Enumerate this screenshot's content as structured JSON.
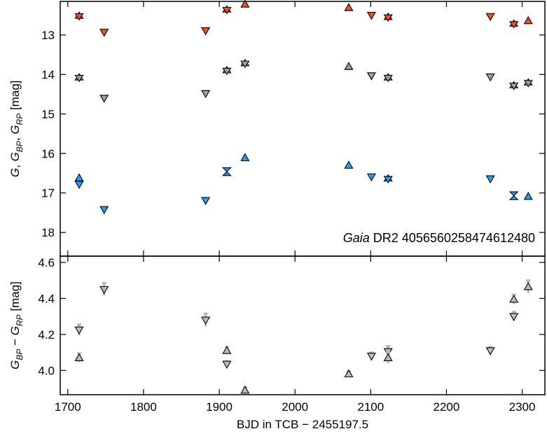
{
  "chart_data": [
    {
      "type": "scatter",
      "panel": "top",
      "ylabel": "G, G_BP, G_RP [mag]",
      "ylim": [
        18.6,
        12.15
      ],
      "xlim": [
        1690,
        2330
      ],
      "yticks": [
        13,
        14,
        15,
        16,
        17,
        18
      ],
      "annotation_italic": "Gaia",
      "annotation_rest": " DR2 4056560258474612480",
      "annotation_position": "bottom-right",
      "series": [
        {
          "name": "G_RP",
          "color": "#ff4d1a",
          "points": [
            {
              "x": 1715,
              "y": 12.52,
              "m": "hex"
            },
            {
              "x": 1748,
              "y": 12.93,
              "m": "down"
            },
            {
              "x": 1882,
              "y": 12.89,
              "m": "down"
            },
            {
              "x": 1910,
              "y": 12.36,
              "m": "hex"
            },
            {
              "x": 1934,
              "y": 12.22,
              "m": "up"
            },
            {
              "x": 2071,
              "y": 12.31,
              "m": "up"
            },
            {
              "x": 2101,
              "y": 12.5,
              "m": "down"
            },
            {
              "x": 2123,
              "y": 12.55,
              "m": "hex"
            },
            {
              "x": 2258,
              "y": 12.53,
              "m": "down"
            },
            {
              "x": 2289,
              "y": 12.72,
              "m": "hex"
            },
            {
              "x": 2308,
              "y": 12.64,
              "m": "up"
            }
          ]
        },
        {
          "name": "G",
          "color": "#9e9e9e",
          "points": [
            {
              "x": 1715,
              "y": 14.08,
              "m": "hex"
            },
            {
              "x": 1748,
              "y": 14.6,
              "m": "down"
            },
            {
              "x": 1882,
              "y": 14.48,
              "m": "down"
            },
            {
              "x": 1910,
              "y": 13.9,
              "m": "hex"
            },
            {
              "x": 1934,
              "y": 13.72,
              "m": "hex"
            },
            {
              "x": 2071,
              "y": 13.8,
              "m": "up"
            },
            {
              "x": 2101,
              "y": 14.03,
              "m": "down"
            },
            {
              "x": 2123,
              "y": 14.08,
              "m": "hex"
            },
            {
              "x": 2258,
              "y": 14.06,
              "m": "down"
            },
            {
              "x": 2289,
              "y": 14.28,
              "m": "hex"
            },
            {
              "x": 2308,
              "y": 14.21,
              "m": "hex"
            }
          ]
        },
        {
          "name": "G_BP",
          "color": "#1aa0ff",
          "points": [
            {
              "x": 1715,
              "y": 16.62,
              "m": "up"
            },
            {
              "x": 1715,
              "y": 16.78,
              "m": "down"
            },
            {
              "x": 1748,
              "y": 17.42,
              "m": "down"
            },
            {
              "x": 1882,
              "y": 17.19,
              "m": "down"
            },
            {
              "x": 1910,
              "y": 16.46,
              "m": "bowtie"
            },
            {
              "x": 1934,
              "y": 16.11,
              "m": "up"
            },
            {
              "x": 2071,
              "y": 16.3,
              "m": "up"
            },
            {
              "x": 2101,
              "y": 16.59,
              "m": "down"
            },
            {
              "x": 2123,
              "y": 16.64,
              "m": "hex"
            },
            {
              "x": 2258,
              "y": 16.64,
              "m": "down"
            },
            {
              "x": 2289,
              "y": 17.07,
              "m": "bowtie"
            },
            {
              "x": 2308,
              "y": 17.09,
              "m": "up"
            }
          ]
        }
      ]
    },
    {
      "type": "scatter",
      "panel": "bottom",
      "ylabel": "G_BP − G_RP [mag]",
      "xlabel": "BJD in TCB − 2455197.5",
      "xlim": [
        1690,
        2330
      ],
      "ylim": [
        3.865,
        4.635
      ],
      "xticks": [
        1700,
        1800,
        1900,
        2000,
        2100,
        2200,
        2300
      ],
      "yticks": [
        "4.0",
        "4.2",
        "4.4",
        "4.6"
      ],
      "series": [
        {
          "name": "G_BP-G_RP",
          "color": "#bdbdbd",
          "points": [
            {
              "x": 1715,
              "y": 4.225,
              "m": "down",
              "err": 0.03
            },
            {
              "x": 1715,
              "y": 4.07,
              "m": "up",
              "err": 0.025
            },
            {
              "x": 1748,
              "y": 4.45,
              "m": "down",
              "err": 0.035
            },
            {
              "x": 1882,
              "y": 4.28,
              "m": "down",
              "err": 0.035
            },
            {
              "x": 1910,
              "y": 4.11,
              "m": "up",
              "err": 0.02
            },
            {
              "x": 1910,
              "y": 4.035,
              "m": "down",
              "err": 0.015
            },
            {
              "x": 1934,
              "y": 3.89,
              "m": "up",
              "err": 0.015
            },
            {
              "x": 2071,
              "y": 3.98,
              "m": "up",
              "err": 0.015
            },
            {
              "x": 2101,
              "y": 4.08,
              "m": "down",
              "err": 0.02
            },
            {
              "x": 2123,
              "y": 4.105,
              "m": "down",
              "err": 0.03
            },
            {
              "x": 2123,
              "y": 4.07,
              "m": "up",
              "err": 0.03
            },
            {
              "x": 2258,
              "y": 4.11,
              "m": "down",
              "err": 0.02
            },
            {
              "x": 2289,
              "y": 4.395,
              "m": "up",
              "err": 0.025
            },
            {
              "x": 2289,
              "y": 4.3,
              "m": "down",
              "err": 0.025
            },
            {
              "x": 2308,
              "y": 4.465,
              "m": "up",
              "err": 0.035
            }
          ]
        }
      ]
    }
  ]
}
